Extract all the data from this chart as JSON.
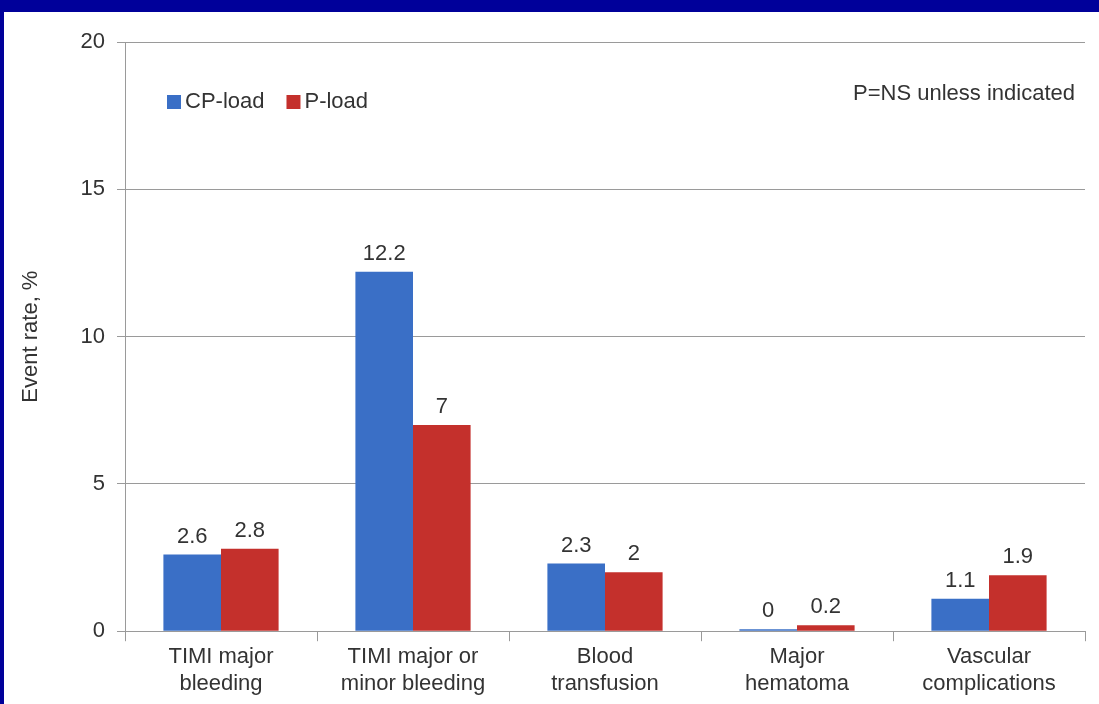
{
  "chart_data": {
    "type": "bar",
    "ylabel": "Event rate, %",
    "categories": [
      "TIMI major bleeding",
      "TIMI major or minor bleeding",
      "Blood transfusion",
      "Major hematoma",
      "Vascular complications"
    ],
    "series": [
      {
        "name": "CP-load",
        "color": "#3a6fc6",
        "values": [
          2.6,
          12.2,
          2.3,
          0,
          1.1
        ]
      },
      {
        "name": "P-load",
        "color": "#c4302c",
        "values": [
          2.8,
          7,
          2,
          0.2,
          1.9
        ]
      }
    ],
    "ylim": [
      0,
      20
    ],
    "yticks": [
      0,
      5,
      10,
      15,
      20
    ],
    "grid": "y",
    "legend": "top left",
    "data_labels": true,
    "annotations": [
      "P=NS unless indicated"
    ]
  }
}
